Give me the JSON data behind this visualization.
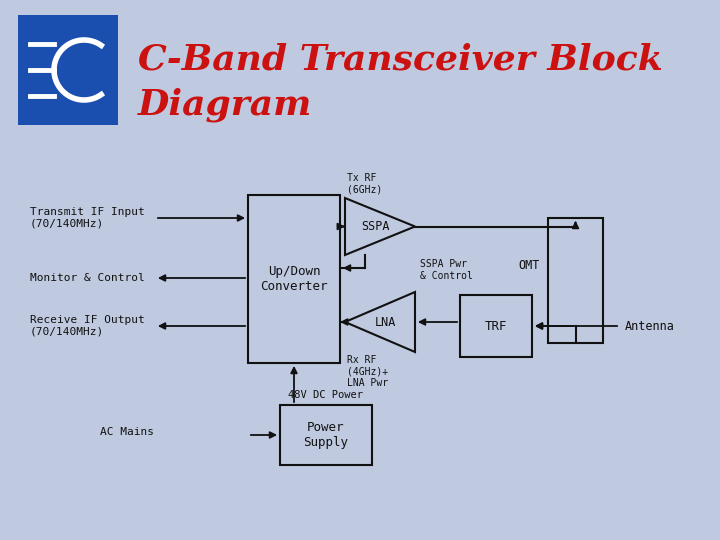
{
  "bg_color": "#bfc9df",
  "title_line1": "C-Band Transceiver Block",
  "title_line2": "Diagram",
  "title_color": "#cc1111",
  "logo_bg": "#1a4faf",
  "box_color": "#111111",
  "text_color": "#111111",
  "arrow_color": "#111111",
  "labels": {
    "transmit_if": "Transmit IF Input\n(70/140MHz)",
    "monitor": "Monitor & Control",
    "receive_if": "Receive IF Output\n(70/140MHz)",
    "ac_mains": "AC Mains",
    "tx_rf": "Tx RF\n(6GHz)",
    "rx_rf": "Rx RF\n(4GHz)+\nLNA Pwr",
    "sspa_pwr": "SSPA Pwr\n& Control",
    "dc_power": "48V DC Power",
    "antenna": "Antenna",
    "updown": "Up/Down\nConverter",
    "power_supply": "Power\nSupply",
    "omt": "OMT",
    "trf": "TRF",
    "sspa": "SSPA",
    "lna": "LNA"
  }
}
